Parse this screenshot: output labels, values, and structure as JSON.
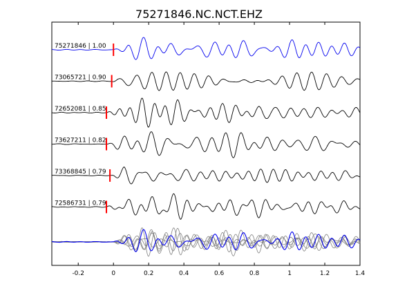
{
  "chart_data": {
    "type": "line",
    "title": "75271846.NC.NCT.EHZ",
    "xlabel": "",
    "ylabel": "",
    "xlim": [
      -0.35,
      1.4
    ],
    "xticks": [
      -0.2,
      0,
      0.2,
      0.4,
      0.6,
      0.8,
      1,
      1.2,
      1.4
    ],
    "xtick_labels": [
      "-0.2",
      "0",
      "0.2",
      "0.4",
      "0.6",
      "0.8",
      "1",
      "1.2",
      "1.4"
    ],
    "grid": false,
    "colors": {
      "reference": "#0000ee",
      "trace": "#000000",
      "pick": "#ff0000",
      "overlay": "#808080"
    },
    "traces": [
      {
        "label": "75271846 | 1.00",
        "event_id": "75271846",
        "correlation": 1.0,
        "pick_time": 0.0,
        "color": "#0000ee",
        "onset": 0.0,
        "seed": 1
      },
      {
        "label": "73065721 | 0.90",
        "event_id": "73065721",
        "correlation": 0.9,
        "pick_time": -0.01,
        "color": "#000000",
        "onset": -0.01,
        "seed": 2
      },
      {
        "label": "72652081 | 0.85",
        "event_id": "72652081",
        "correlation": 0.85,
        "pick_time": -0.04,
        "color": "#000000",
        "onset": -0.04,
        "seed": 3
      },
      {
        "label": "73627211 | 0.82",
        "event_id": "73627211",
        "correlation": 0.82,
        "pick_time": -0.04,
        "color": "#000000",
        "onset": -0.04,
        "seed": 4
      },
      {
        "label": "73368845 | 0.79",
        "event_id": "73368845",
        "correlation": 0.79,
        "pick_time": -0.02,
        "color": "#000000",
        "onset": -0.02,
        "seed": 5
      },
      {
        "label": "72586731 | 0.79",
        "event_id": "72586731",
        "correlation": 0.79,
        "pick_time": -0.04,
        "color": "#000000",
        "onset": -0.04,
        "seed": 6
      }
    ]
  }
}
